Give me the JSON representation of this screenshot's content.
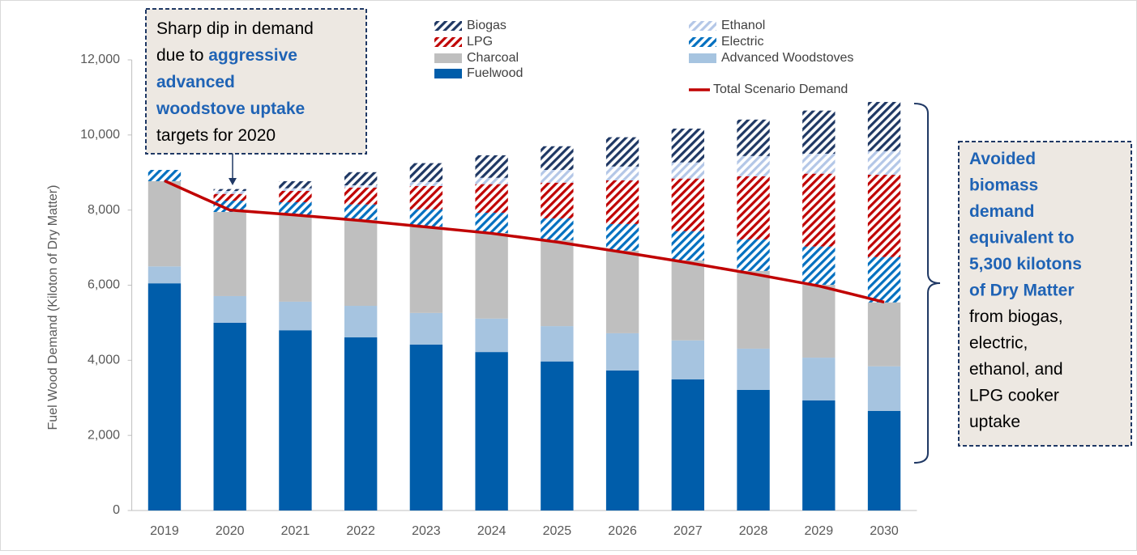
{
  "chart_data": {
    "type": "stacked-bar",
    "categories": [
      "2019",
      "2020",
      "2021",
      "2022",
      "2023",
      "2024",
      "2025",
      "2026",
      "2027",
      "2028",
      "2029",
      "2030"
    ],
    "ylabel": "Fuel Wood Demand  (Kiloton of Dry Matter)",
    "ylim": [
      0,
      12000
    ],
    "yticks": [
      0,
      {
        "value": 2000,
        "label": "2,000"
      },
      {
        "value": 4000,
        "label": "4,000"
      },
      {
        "value": 6000,
        "label": "6,000"
      },
      {
        "value": 8000,
        "label": "8,000"
      },
      {
        "value": 10000,
        "label": "10,000"
      },
      {
        "value": 12000,
        "label": "12,000"
      }
    ],
    "series": [
      {
        "name": "Fuelwood",
        "color": "#005daa",
        "hatched": false,
        "values": [
          6050,
          5000,
          4800,
          4610,
          4420,
          4220,
          3970,
          3730,
          3490,
          3210,
          2930,
          2650
        ]
      },
      {
        "name": "Advanced Woodstoves",
        "color": "#a6c4e0",
        "hatched": false,
        "values": [
          450,
          710,
          760,
          840,
          840,
          890,
          940,
          990,
          1040,
          1100,
          1140,
          1190
        ]
      },
      {
        "name": "Charcoal",
        "color": "#bfbfbf",
        "hatched": false,
        "values": [
          2270,
          2240,
          2310,
          2290,
          2300,
          2280,
          2290,
          2200,
          2130,
          2070,
          1940,
          1700
        ]
      },
      {
        "name": "Electric",
        "color": "#0070c0",
        "hatched": true,
        "values": [
          300,
          300,
          340,
          410,
          460,
          540,
          580,
          710,
          780,
          840,
          1020,
          1210
        ]
      },
      {
        "name": "LPG",
        "color": "#c00000",
        "hatched": true,
        "values": [
          0,
          180,
          300,
          450,
          620,
          760,
          950,
          1160,
          1400,
          1680,
          1940,
          2190
        ]
      },
      {
        "name": "Ethanol",
        "color": "#b4c7e7",
        "hatched": true,
        "values": [
          0,
          80,
          70,
          60,
          110,
          170,
          340,
          370,
          430,
          540,
          530,
          630
        ]
      },
      {
        "name": "Biogas",
        "color": "#1f3864",
        "hatched": true,
        "values": [
          0,
          50,
          190,
          350,
          500,
          600,
          630,
          780,
          900,
          970,
          1150,
          1310
        ]
      }
    ],
    "line": {
      "name": "Total Scenario Demand",
      "color": "#c00000",
      "values": [
        8780,
        8000,
        7870,
        7720,
        7550,
        7380,
        7150,
        6880,
        6600,
        6300,
        5980,
        5550
      ]
    },
    "annotations": [
      {
        "lines": [
          [
            {
              "text": "Sharp dip in demand",
              "bold": false
            }
          ],
          [
            {
              "text": "due to ",
              "bold": false
            },
            {
              "text": "aggressive",
              "bold": true
            }
          ],
          [
            {
              "text": "advanced",
              "bold": true
            }
          ],
          [
            {
              "text": "woodstove uptake",
              "bold": true
            }
          ],
          [
            {
              "text": "targets for 2020",
              "bold": false
            }
          ]
        ]
      },
      {
        "lines": [
          [
            {
              "text": "Avoided",
              "bold": true
            }
          ],
          [
            {
              "text": "biomass",
              "bold": true
            }
          ],
          [
            {
              "text": "demand",
              "bold": true
            }
          ],
          [
            {
              "text": "equivalent to",
              "bold": true
            }
          ],
          [
            {
              "text": "5,300 kilotons",
              "bold": true
            }
          ],
          [
            {
              "text": "of Dry Matter",
              "bold": true
            }
          ],
          [
            {
              "text": "from biogas,",
              "bold": false
            }
          ],
          [
            {
              "text": "electric,",
              "bold": false
            }
          ],
          [
            {
              "text": "ethanol, and",
              "bold": false
            }
          ],
          [
            {
              "text": "LPG cooker",
              "bold": false
            }
          ],
          [
            {
              "text": "uptake",
              "bold": false
            }
          ]
        ]
      }
    ]
  }
}
